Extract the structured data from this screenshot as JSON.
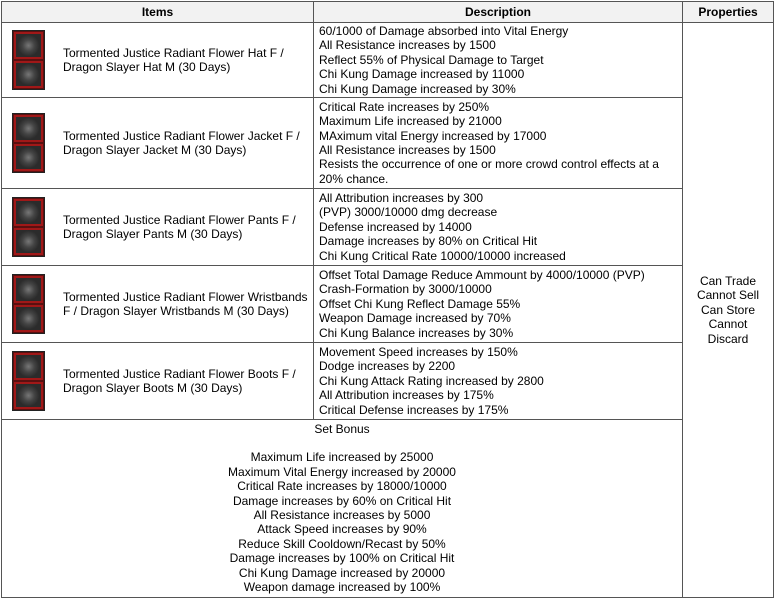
{
  "headers": {
    "items": "Items",
    "description": "Description",
    "properties": "Properties"
  },
  "rows": [
    {
      "name": "Tormented Justice Radiant Flower Hat F / Dragon Slayer Hat M (30 Days)",
      "desc": [
        "60/1000 of Damage absorbed into Vital Energy",
        "All Resistance increases by 1500",
        "Reflect 55% of Physical Damage to Target",
        "Chi Kung Damage increased by 11000",
        "Chi Kung Damage increased by 30%"
      ]
    },
    {
      "name": "Tormented Justice Radiant Flower Jacket F / Dragon Slayer Jacket M (30 Days)",
      "desc": [
        "Critical Rate increases by 250%",
        "Maximum Life increased by 21000",
        "MAximum vital Energy increased by 17000",
        "All Resistance increases by 1500",
        "Resists the occurrence of one or more crowd control effects at a 20% chance."
      ]
    },
    {
      "name": "Tormented Justice Radiant Flower Pants F / Dragon Slayer Pants M (30 Days)",
      "desc": [
        "All Attribution increases by 300",
        "(PVP) 3000/10000 dmg decrease",
        "Defense increased by 14000",
        "Damage increases by 80% on Critical Hit",
        "Chi Kung Critical Rate 10000/10000 increased"
      ]
    },
    {
      "name": "Tormented Justice Radiant Flower Wristbands F / Dragon Slayer Wristbands M (30 Days)",
      "desc": [
        "Offset Total Damage Reduce Ammount by 4000/10000 (PVP)",
        "Crash-Formation by 3000/10000",
        "Offset Chi Kung Reflect Damage 55%",
        "Weapon Damage increased by 70%",
        "Chi Kung Balance increases by 30%"
      ]
    },
    {
      "name": "Tormented Justice Radiant Flower Boots F / Dragon Slayer Boots M (30 Days)",
      "desc": [
        "Movement Speed increases by 150%",
        " Dodge increases by 2200",
        "Chi Kung Attack Rating increased by 2800",
        "All Attribution increases by 175%",
        "Critical Defense increases by 175%"
      ]
    }
  ],
  "set_bonus": {
    "title": "Set Bonus",
    "lines": [
      "Maximum Life increased by 25000",
      "Maximum Vital Energy increased by 20000",
      "Critical Rate increases by 18000/10000",
      "Damage increases by 60% on Critical Hit",
      "All Resistance increases by 5000",
      "Attack Speed increases by 90%",
      "Reduce Skill Cooldown/Recast by 50%",
      "Damage increases by 100% on Critical Hit",
      "Chi Kung Damage increased by 20000",
      "Weapon damage increased by 100%"
    ]
  },
  "properties": [
    "Can Trade",
    "Cannot Sell",
    "Can Store",
    "Cannot Discard"
  ]
}
